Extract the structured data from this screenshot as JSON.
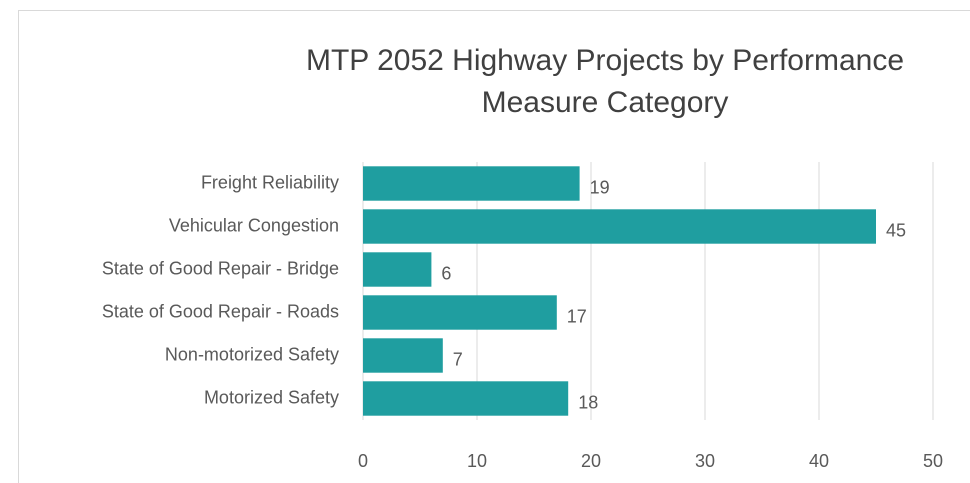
{
  "chart_data": {
    "type": "bar",
    "orientation": "horizontal",
    "title": "MTP 2052 Highway Projects by Performance Measure Category",
    "categories": [
      "Freight Reliability",
      "Vehicular Congestion",
      "State of Good Repair - Bridge",
      "State of Good Repair - Roads",
      "Non-motorized Safety",
      "Motorized Safety"
    ],
    "values": [
      19,
      45,
      6,
      17,
      7,
      18
    ],
    "color": "#1f9ea0",
    "xlim": [
      0,
      50
    ],
    "xticks": [
      0,
      10,
      20,
      30,
      40,
      50
    ],
    "grid": true
  }
}
